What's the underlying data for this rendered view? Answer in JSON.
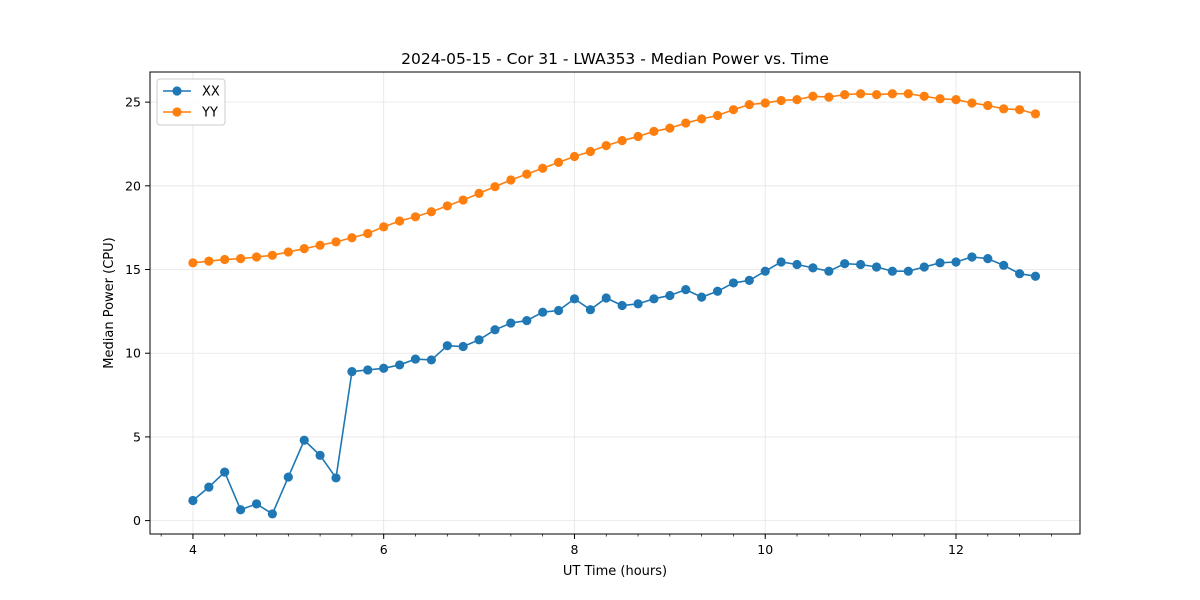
{
  "chart_data": {
    "type": "line",
    "title": "2024-05-15 - Cor 31 - LWA353 - Median Power vs. Time",
    "xlabel": "UT Time (hours)",
    "ylabel": "Median Power (CPU)",
    "xlim": [
      3.55,
      13.3
    ],
    "ylim": [
      -0.8,
      26.8
    ],
    "xticks": [
      4,
      6,
      8,
      10,
      12
    ],
    "yticks": [
      0,
      5,
      10,
      15,
      20,
      25
    ],
    "grid": true,
    "legend_position": "top-left",
    "x": [
      4.0,
      4.167,
      4.333,
      4.5,
      4.667,
      4.833,
      5.0,
      5.167,
      5.333,
      5.5,
      5.667,
      5.833,
      6.0,
      6.167,
      6.333,
      6.5,
      6.667,
      6.833,
      7.0,
      7.167,
      7.333,
      7.5,
      7.667,
      7.833,
      8.0,
      8.167,
      8.333,
      8.5,
      8.667,
      8.833,
      9.0,
      9.167,
      9.333,
      9.5,
      9.667,
      9.833,
      10.0,
      10.167,
      10.333,
      10.5,
      10.667,
      10.833,
      11.0,
      11.167,
      11.333,
      11.5,
      11.667,
      11.833,
      12.0,
      12.167,
      12.333,
      12.5,
      12.667,
      12.833
    ],
    "series": [
      {
        "name": "XX",
        "color": "#1f77b4",
        "values": [
          1.2,
          2.0,
          2.9,
          0.65,
          1.0,
          0.4,
          2.6,
          4.8,
          3.9,
          2.55,
          8.9,
          9.0,
          9.1,
          9.3,
          9.65,
          9.6,
          10.45,
          10.4,
          10.8,
          11.4,
          11.8,
          11.95,
          12.45,
          12.55,
          13.25,
          12.6,
          13.3,
          12.85,
          12.95,
          13.25,
          13.45,
          13.8,
          13.35,
          13.7,
          14.2,
          14.35,
          14.9,
          15.45,
          15.3,
          15.1,
          14.9,
          15.35,
          15.3,
          15.15,
          14.9,
          14.9,
          15.15,
          15.4,
          15.45,
          15.75,
          15.65,
          15.25,
          14.75,
          14.6
        ]
      },
      {
        "name": "YY",
        "color": "#ff7f0e",
        "values": [
          15.4,
          15.5,
          15.6,
          15.65,
          15.75,
          15.85,
          16.05,
          16.25,
          16.45,
          16.65,
          16.9,
          17.15,
          17.55,
          17.9,
          18.15,
          18.45,
          18.8,
          19.15,
          19.55,
          19.95,
          20.35,
          20.7,
          21.05,
          21.4,
          21.75,
          22.05,
          22.4,
          22.7,
          22.95,
          23.25,
          23.45,
          23.75,
          24.0,
          24.2,
          24.55,
          24.85,
          24.95,
          25.1,
          25.15,
          25.35,
          25.3,
          25.45,
          25.5,
          25.45,
          25.5,
          25.5,
          25.35,
          25.2,
          25.15,
          24.95,
          24.8,
          24.6,
          24.55,
          24.3
        ]
      }
    ]
  }
}
